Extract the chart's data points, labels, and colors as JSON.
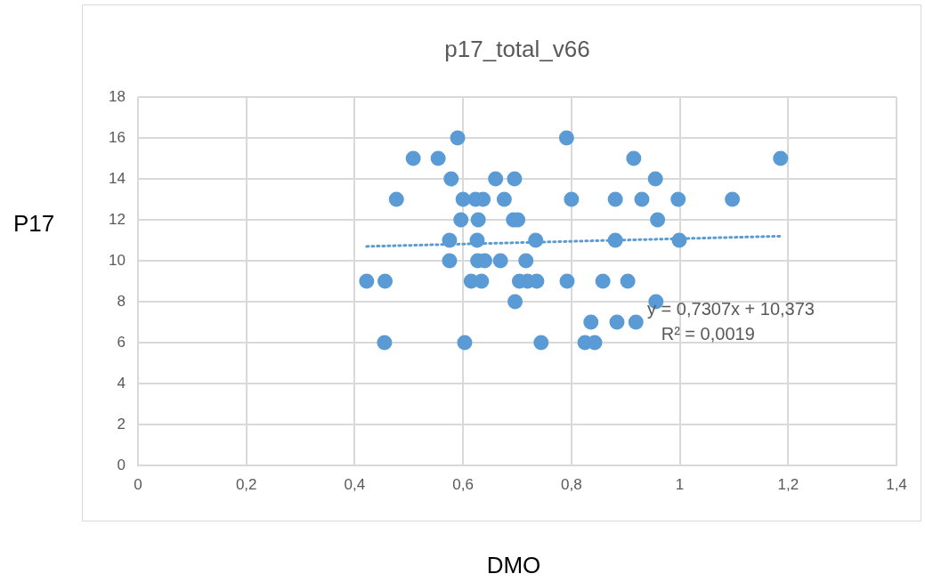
{
  "chart_data": {
    "type": "scatter",
    "title": "p17_total_v66",
    "xlabel": "DMO",
    "ylabel": "P17",
    "xlim": [
      0,
      1.4
    ],
    "xticks": [
      0,
      {
        "value": 0.2,
        "label": "0,2"
      },
      {
        "value": 0.4,
        "label": "0,4"
      },
      {
        "value": 0.6,
        "label": "0,6"
      },
      {
        "value": 0.8,
        "label": "0,8"
      },
      1,
      {
        "value": 1.2,
        "label": "1,2"
      },
      {
        "value": 1.4,
        "label": "1,4"
      }
    ],
    "ylim": [
      0,
      18
    ],
    "yticks": [
      0,
      2,
      4,
      6,
      8,
      10,
      12,
      14,
      16,
      18
    ],
    "grid": true,
    "legend": false,
    "marker": "circle",
    "series": [
      {
        "color": "#5b9bd5",
        "x": [
          0.59,
          0.791,
          0.508,
          0.554,
          0.915,
          1.186,
          0.578,
          0.66,
          0.695,
          0.955,
          0.477,
          0.6,
          0.623,
          0.637,
          0.676,
          0.8,
          0.881,
          0.93,
          0.997,
          1.097,
          0.596,
          0.628,
          0.693,
          0.701,
          0.959,
          0.575,
          0.626,
          0.734,
          0.881,
          0.999,
          0.575,
          0.627,
          0.64,
          0.669,
          0.716,
          0.422,
          0.456,
          0.615,
          0.634,
          0.704,
          0.719,
          0.736,
          0.792,
          0.858,
          0.904,
          0.696,
          0.956,
          0.836,
          0.884,
          0.919,
          0.455,
          0.603,
          0.744,
          0.825,
          0.843
        ],
        "values": [
          16,
          16,
          15,
          15,
          15,
          15,
          14,
          14,
          14,
          14,
          13,
          13,
          13,
          13,
          13,
          13,
          13,
          13,
          13,
          13,
          12,
          12,
          12,
          12,
          12,
          11,
          11,
          11,
          11,
          11,
          10,
          10,
          10,
          10,
          10,
          9,
          9,
          9,
          9,
          9,
          9,
          9,
          9,
          9,
          9,
          8,
          8,
          7,
          7,
          7,
          6,
          6,
          6,
          6,
          6
        ]
      },
      {
        "type": "line",
        "color": "#5b9bd5",
        "line_style": "dotted",
        "marker": "none",
        "x": [
          0.422,
          1.186
        ],
        "values": [
          10.7,
          11.2
        ]
      }
    ],
    "annotations": [
      "y = 0,7307x + 10,373",
      "R² = 0,0019"
    ]
  }
}
